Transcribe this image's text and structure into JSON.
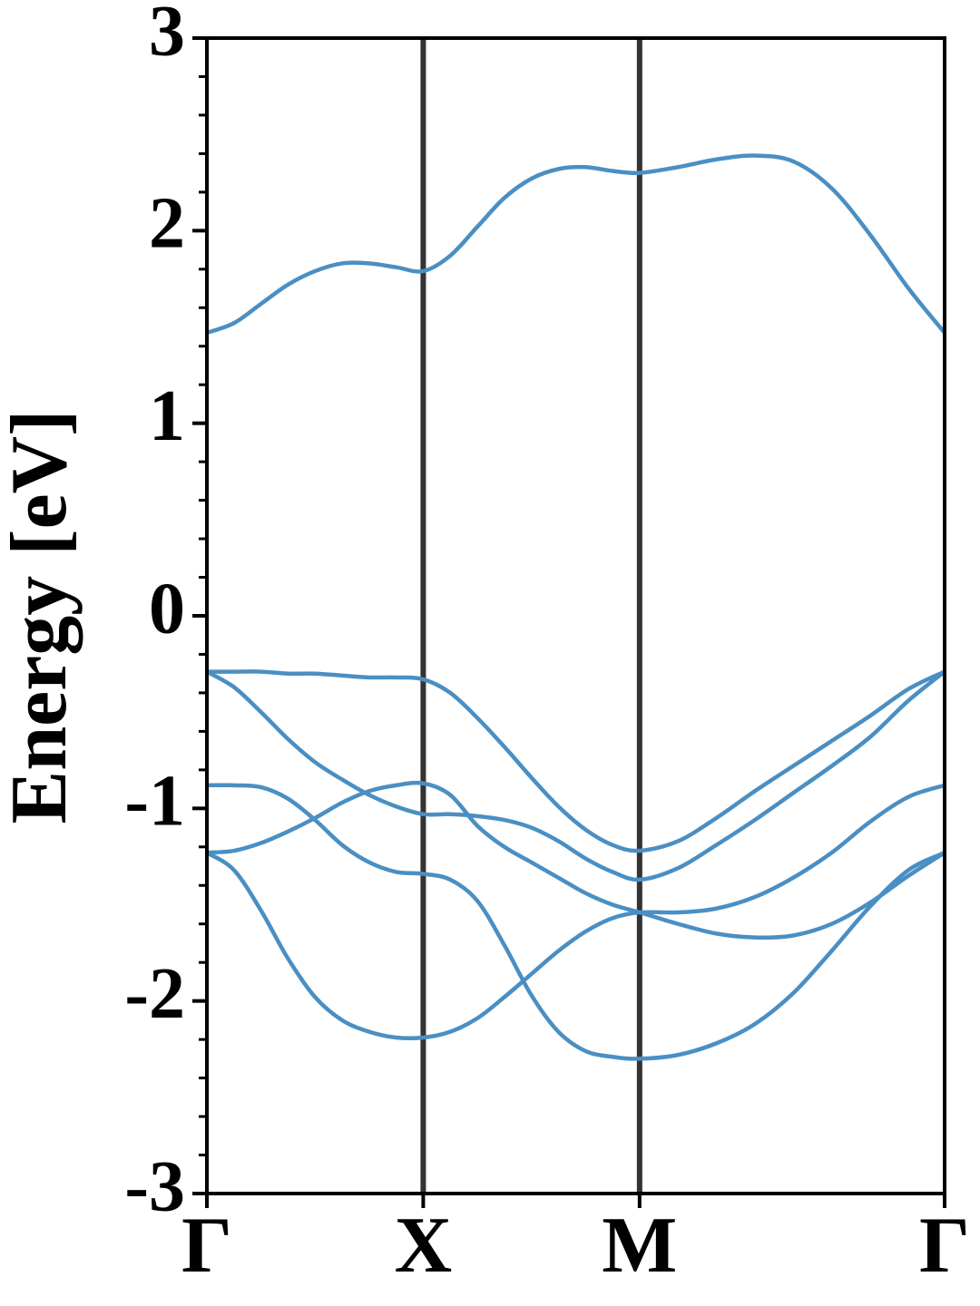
{
  "chart_data": {
    "type": "line",
    "ylabel": "Energy [eV]",
    "x": [
      0,
      0.125,
      0.25,
      0.375,
      0.5,
      0.625,
      0.75,
      0.875,
      1,
      1.125,
      1.25,
      1.375,
      1.5,
      1.625,
      1.75,
      1.875,
      2,
      2.178,
      2.355,
      2.533,
      2.71,
      2.888,
      3.065,
      3.243,
      3.41
    ],
    "xlim": [
      0,
      3.41
    ],
    "xticks": [
      {
        "value": 0,
        "label": "Γ"
      },
      {
        "value": 1,
        "label": "X"
      },
      {
        "value": 2,
        "label": "M"
      },
      {
        "value": 3.41,
        "label": "Γ"
      }
    ],
    "ylim": [
      -3,
      3
    ],
    "yticks": [
      -3,
      -2,
      -1,
      0,
      1,
      2,
      3
    ],
    "yminorticks": [
      -2.8,
      -2.6,
      -2.4,
      -2.2,
      -1.8,
      -1.6,
      -1.4,
      -1.2,
      -0.8,
      -0.6,
      -0.4,
      -0.2,
      0.2,
      0.4,
      0.6,
      0.8,
      1.2,
      1.4,
      1.6,
      1.8,
      2.2,
      2.4,
      2.6,
      2.8
    ],
    "xgrid": true,
    "series": [
      {
        "color": "#4a8fc3",
        "values": [
          1.47,
          1.52,
          1.62,
          1.72,
          1.79,
          1.83,
          1.83,
          1.81,
          1.79,
          1.87,
          2.02,
          2.17,
          2.27,
          2.32,
          2.33,
          2.31,
          2.3,
          2.33,
          2.37,
          2.39,
          2.36,
          2.22,
          1.98,
          1.7,
          1.47
        ]
      },
      {
        "color": "#4a8fc3",
        "values": [
          -0.29,
          -0.29,
          -0.29,
          -0.3,
          -0.3,
          -0.31,
          -0.32,
          -0.32,
          -0.33,
          -0.4,
          -0.53,
          -0.68,
          -0.84,
          -0.99,
          -1.11,
          -1.19,
          -1.22,
          -1.17,
          -1.05,
          -0.91,
          -0.78,
          -0.65,
          -0.52,
          -0.38,
          -0.29
        ]
      },
      {
        "color": "#4a8fc3",
        "values": [
          -0.29,
          -0.37,
          -0.5,
          -0.64,
          -0.76,
          -0.85,
          -0.93,
          -0.99,
          -1.03,
          -1.03,
          -1.04,
          -1.06,
          -1.1,
          -1.17,
          -1.26,
          -1.33,
          -1.37,
          -1.31,
          -1.19,
          -1.06,
          -0.92,
          -0.78,
          -0.63,
          -0.44,
          -0.29
        ]
      },
      {
        "color": "#4a8fc3",
        "values": [
          -0.88,
          -0.88,
          -0.89,
          -0.95,
          -1.06,
          -1.19,
          -1.28,
          -1.33,
          -1.34,
          -1.37,
          -1.48,
          -1.71,
          -1.97,
          -2.16,
          -2.26,
          -2.29,
          -2.3,
          -2.28,
          -2.22,
          -2.12,
          -1.96,
          -1.74,
          -1.51,
          -1.32,
          -1.23
        ]
      },
      {
        "color": "#4a8fc3",
        "values": [
          -1.23,
          -1.22,
          -1.18,
          -1.12,
          -1.05,
          -0.97,
          -0.91,
          -0.88,
          -0.87,
          -0.93,
          -1.09,
          -1.2,
          -1.28,
          -1.36,
          -1.44,
          -1.5,
          -1.54,
          -1.6,
          -1.65,
          -1.67,
          -1.66,
          -1.6,
          -1.49,
          -1.35,
          -1.23
        ]
      },
      {
        "color": "#4a8fc3",
        "values": [
          -1.23,
          -1.32,
          -1.53,
          -1.78,
          -1.98,
          -2.1,
          -2.16,
          -2.19,
          -2.19,
          -2.16,
          -2.09,
          -1.98,
          -1.86,
          -1.74,
          -1.64,
          -1.57,
          -1.54,
          -1.54,
          -1.52,
          -1.46,
          -1.36,
          -1.23,
          -1.07,
          -0.94,
          -0.88
        ]
      }
    ]
  }
}
